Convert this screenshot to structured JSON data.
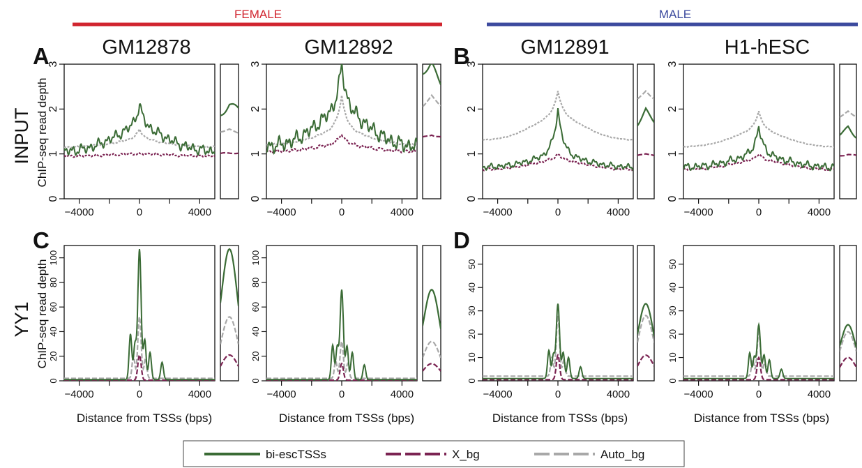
{
  "header": {
    "female": "FEMALE",
    "male": "MALE",
    "female_color": "#d1252f",
    "male_color": "#3c4a9e"
  },
  "rows": [
    "INPUT",
    "YY1"
  ],
  "samples": [
    "GM12878",
    "GM12892",
    "GM12891",
    "H1-hESC"
  ],
  "panel_letters": [
    "A",
    "B",
    "C",
    "D"
  ],
  "ylabel": "ChIP-seq read depth",
  "xlabel": "Distance from TSSs (bps)",
  "legend": [
    {
      "name": "bi-escTSSs",
      "color": "#3a6b35",
      "style": "solid"
    },
    {
      "name": "X_bg",
      "color": "#7b2352",
      "style": "dashed"
    },
    {
      "name": "Auto_bg",
      "color": "#a8a8a8",
      "style": "dashed"
    }
  ],
  "chart_data": [
    {
      "type": "line",
      "sample": "GM12878",
      "row": "INPUT",
      "xlim": [
        -5000,
        5000
      ],
      "xticks": [
        -4000,
        0,
        4000
      ],
      "ylim": [
        0,
        3
      ],
      "yticks": [
        0,
        1,
        2,
        3
      ],
      "series": [
        {
          "name": "bi-escTSSs",
          "peak": 2.1,
          "base": 1.05,
          "shoulder": 1.55,
          "noise": 0.14
        },
        {
          "name": "X_bg",
          "peak": 1.0,
          "base": 0.95,
          "shoulder": 1.0,
          "noise": 0.03
        },
        {
          "name": "Auto_bg",
          "peak": 1.55,
          "base": 1.15,
          "shoulder": 1.3,
          "noise": 0.02
        }
      ]
    },
    {
      "type": "line",
      "sample": "GM12892",
      "row": "INPUT",
      "xlim": [
        -5000,
        5000
      ],
      "xticks": [
        -4000,
        0,
        4000
      ],
      "ylim": [
        0,
        3
      ],
      "yticks": [
        0,
        1,
        2,
        3
      ],
      "series": [
        {
          "name": "bi-escTSSs",
          "peak": 3.0,
          "base": 1.15,
          "shoulder": 1.9,
          "noise": 0.2
        },
        {
          "name": "X_bg",
          "peak": 1.45,
          "base": 1.05,
          "shoulder": 1.2,
          "noise": 0.04
        },
        {
          "name": "Auto_bg",
          "peak": 2.3,
          "base": 1.2,
          "shoulder": 1.5,
          "noise": 0.02
        }
      ]
    },
    {
      "type": "line",
      "sample": "GM12891",
      "row": "INPUT",
      "xlim": [
        -5000,
        5000
      ],
      "xticks": [
        -4000,
        0,
        4000
      ],
      "ylim": [
        0,
        3
      ],
      "yticks": [
        0,
        1,
        2,
        3
      ],
      "series": [
        {
          "name": "bi-escTSSs",
          "peak": 2.0,
          "base": 0.7,
          "shoulder": 0.95,
          "noise": 0.08
        },
        {
          "name": "X_bg",
          "peak": 1.0,
          "base": 0.65,
          "shoulder": 0.85,
          "noise": 0.03
        },
        {
          "name": "Auto_bg",
          "peak": 2.4,
          "base": 1.3,
          "shoulder": 1.8,
          "noise": 0.01
        }
      ]
    },
    {
      "type": "line",
      "sample": "H1-hESC",
      "row": "INPUT",
      "xlim": [
        -5000,
        5000
      ],
      "xticks": [
        -4000,
        0,
        4000
      ],
      "ylim": [
        0,
        3
      ],
      "yticks": [
        0,
        1,
        2,
        3
      ],
      "series": [
        {
          "name": "bi-escTSSs",
          "peak": 1.6,
          "base": 0.7,
          "shoulder": 0.95,
          "noise": 0.1
        },
        {
          "name": "X_bg",
          "peak": 1.0,
          "base": 0.65,
          "shoulder": 0.85,
          "noise": 0.03
        },
        {
          "name": "Auto_bg",
          "peak": 1.95,
          "base": 1.15,
          "shoulder": 1.5,
          "noise": 0.01
        }
      ]
    },
    {
      "type": "line",
      "sample": "GM12878",
      "row": "YY1",
      "xlim": [
        -5000,
        5000
      ],
      "xticks": [
        -4000,
        0,
        4000
      ],
      "ylim": [
        0,
        110
      ],
      "yticks": [
        0,
        20,
        40,
        60,
        80,
        100
      ],
      "series": [
        {
          "name": "bi-escTSSs",
          "peak": 107,
          "base": 1,
          "side": [
            [
              -600,
              37
            ],
            [
              -300,
              28
            ],
            [
              350,
              32
            ],
            [
              700,
              22
            ],
            [
              1500,
              14
            ]
          ],
          "noise": 0
        },
        {
          "name": "X_bg",
          "peak": 21,
          "base": 0.5,
          "side": [],
          "noise": 0
        },
        {
          "name": "Auto_bg",
          "peak": 52,
          "base": 2,
          "side": [
            [
              -400,
              18
            ],
            [
              400,
              16
            ]
          ],
          "noise": 0
        }
      ]
    },
    {
      "type": "line",
      "sample": "GM12892",
      "row": "YY1",
      "xlim": [
        -5000,
        5000
      ],
      "xticks": [
        -4000,
        0,
        4000
      ],
      "ylim": [
        0,
        110
      ],
      "yticks": [
        0,
        20,
        40,
        60,
        80,
        100
      ],
      "series": [
        {
          "name": "bi-escTSSs",
          "peak": 74,
          "base": 1,
          "side": [
            [
              -600,
              28
            ],
            [
              -300,
              26
            ],
            [
              350,
              27
            ],
            [
              700,
              22
            ],
            [
              1500,
              12
            ]
          ],
          "noise": 0
        },
        {
          "name": "X_bg",
          "peak": 14,
          "base": 0.5,
          "side": [],
          "noise": 0
        },
        {
          "name": "Auto_bg",
          "peak": 32,
          "base": 2,
          "side": [
            [
              -400,
              14
            ],
            [
              400,
              12
            ]
          ],
          "noise": 0
        }
      ]
    },
    {
      "type": "line",
      "sample": "GM12891",
      "row": "YY1",
      "xlim": [
        -5000,
        5000
      ],
      "xticks": [
        -4000,
        0,
        4000
      ],
      "ylim": [
        0,
        58
      ],
      "yticks": [
        0,
        10,
        20,
        30,
        40,
        50
      ],
      "series": [
        {
          "name": "bi-escTSSs",
          "peak": 33,
          "base": 1,
          "side": [
            [
              -600,
              12
            ],
            [
              -300,
              10
            ],
            [
              350,
              11
            ],
            [
              700,
              9
            ],
            [
              1500,
              5
            ]
          ],
          "noise": 0
        },
        {
          "name": "X_bg",
          "peak": 11,
          "base": 0.5,
          "side": [],
          "noise": 0
        },
        {
          "name": "Auto_bg",
          "peak": 28,
          "base": 2,
          "side": [
            [
              -400,
              8
            ],
            [
              400,
              7
            ]
          ],
          "noise": 0
        }
      ]
    },
    {
      "type": "line",
      "sample": "H1-hESC",
      "row": "YY1",
      "xlim": [
        -5000,
        5000
      ],
      "xticks": [
        -4000,
        0,
        4000
      ],
      "ylim": [
        0,
        58
      ],
      "yticks": [
        0,
        10,
        20,
        30,
        40,
        50
      ],
      "series": [
        {
          "name": "bi-escTSSs",
          "peak": 24,
          "base": 1,
          "side": [
            [
              -600,
              11
            ],
            [
              -300,
              9
            ],
            [
              350,
              10
            ],
            [
              700,
              8
            ],
            [
              1500,
              4
            ]
          ],
          "noise": 0
        },
        {
          "name": "X_bg",
          "peak": 10,
          "base": 0.5,
          "side": [],
          "noise": 0
        },
        {
          "name": "Auto_bg",
          "peak": 21,
          "base": 2,
          "side": [
            [
              -400,
              7
            ],
            [
              400,
              6
            ]
          ],
          "noise": 0
        }
      ]
    }
  ]
}
